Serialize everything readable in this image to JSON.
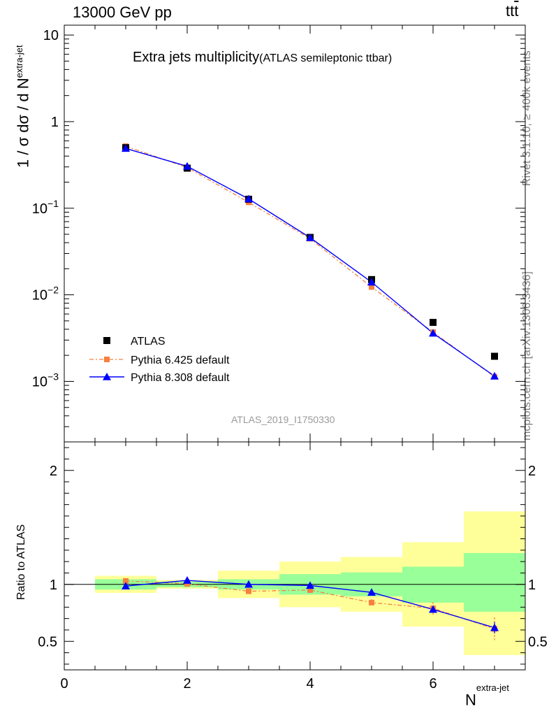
{
  "header": {
    "energy_label": "13000 GeV pp",
    "process_label": "tt",
    "process_suffix": "t"
  },
  "side_text": {
    "rivet": "Rivet 3.1.10, ≥ 400k events",
    "source": "mcplots.cern.ch [arXiv:1306.3436]"
  },
  "colors": {
    "data": "#000000",
    "pythia6": "#f58040",
    "pythia8": "#0000ff",
    "band_inner": "#99ff99",
    "band_outer": "#ffff99"
  },
  "chart_data": [
    {
      "type": "scatter",
      "panel": "main",
      "title": "Extra jets multiplicity",
      "subtitle": "(ATLAS semileptonic ttbar)",
      "ylabel": "1 / σ dσ / d N",
      "ylabel_sup": "extra-jet",
      "yscale": "log",
      "xlim": [
        0,
        7.5
      ],
      "ylim": [
        0.0002,
        13
      ],
      "y_ticks": [
        0.001,
        0.01,
        0.1,
        1,
        10
      ],
      "y_tick_labels": [
        "10^-3",
        "10^-2",
        "10^-1",
        "1",
        "10"
      ],
      "watermark": "ATLAS_2019_I1750330",
      "legend_position": "bottom-left",
      "x": [
        1,
        2,
        3,
        4,
        5,
        6,
        7
      ],
      "series": [
        {
          "name": "ATLAS",
          "values": [
            0.5,
            0.29,
            0.127,
            0.046,
            0.015,
            0.0048,
            0.00195
          ]
        },
        {
          "name": "Pythia 6.425 default",
          "values": [
            0.52,
            0.295,
            0.117,
            0.0445,
            0.0123,
            0.0037,
            0.00113
          ]
        },
        {
          "name": "Pythia 8.308 default",
          "values": [
            0.49,
            0.305,
            0.128,
            0.0457,
            0.014,
            0.0036,
            0.00115
          ]
        }
      ]
    },
    {
      "type": "line",
      "panel": "ratio",
      "ylabel": "Ratio to ATLAS",
      "xlabel": "N",
      "xlabel_sup": "extra-jet",
      "xlim": [
        0,
        7.5
      ],
      "ylim": [
        0.25,
        2.25
      ],
      "x_ticks": [
        0,
        2,
        4,
        6
      ],
      "y_ticks": [
        0.5,
        1,
        2
      ],
      "y_tick_labels": [
        "0.5",
        "1",
        "2"
      ],
      "x": [
        1,
        2,
        3,
        4,
        5,
        6,
        7
      ],
      "bands": {
        "bins": [
          [
            0.5,
            1.5
          ],
          [
            1.5,
            2.5
          ],
          [
            2.5,
            3.5
          ],
          [
            3.5,
            4.5
          ],
          [
            4.5,
            5.5
          ],
          [
            5.5,
            6.5
          ],
          [
            6.5,
            7.5
          ]
        ],
        "inner_low": [
          0.955,
          0.975,
          0.955,
          0.91,
          0.895,
          0.84,
          0.76
        ],
        "inner_high": [
          1.045,
          1.025,
          1.045,
          1.09,
          1.105,
          1.155,
          1.275
        ],
        "outer_low": [
          0.925,
          0.962,
          0.88,
          0.8,
          0.76,
          0.63,
          0.38
        ],
        "outer_high": [
          1.075,
          1.038,
          1.12,
          1.2,
          1.24,
          1.37,
          1.64
        ]
      },
      "series": [
        {
          "name": "Pythia 6.425 default",
          "values": [
            1.03,
            1.005,
            0.94,
            0.95,
            0.84,
            0.79,
            0.61
          ],
          "err": [
            0.01,
            0.01,
            0.012,
            0.015,
            0.03,
            0.055,
            0.1
          ]
        },
        {
          "name": "Pythia 8.308 default",
          "values": [
            0.985,
            1.035,
            1.0,
            0.99,
            0.93,
            0.78,
            0.62
          ],
          "err": [
            0.008,
            0.008,
            0.01,
            0.012,
            0.015,
            0.03,
            0.05
          ]
        }
      ]
    }
  ]
}
